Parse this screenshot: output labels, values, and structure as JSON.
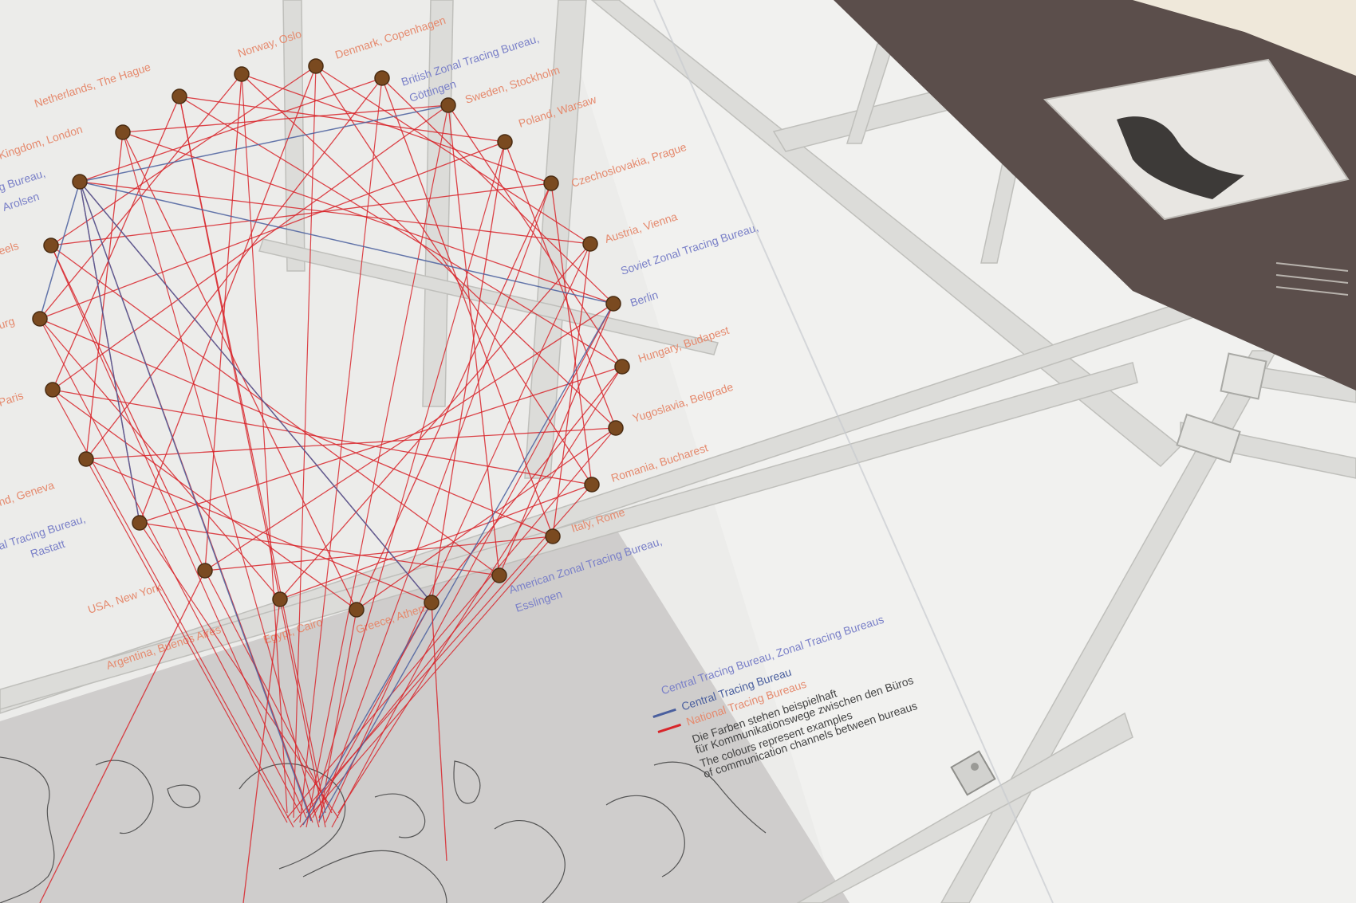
{
  "colors": {
    "background": "#ececea",
    "national_label": "#e58a6e",
    "zonal_label": "#7a80c8",
    "string_red": "#d8252a",
    "string_blue": "#4a5f9e",
    "pin": "#7a4a20",
    "map_panel": "#cfcdcc",
    "dark_panel": "#5b4e4b",
    "frame": "#d9d9d6"
  },
  "labels": {
    "national": [
      "Norway, Oslo",
      "Denmark, Copenhagen",
      "Netherlands, The Hague",
      "Sweden, Stockholm",
      "Kingdom, London",
      "Poland, Warsaw",
      "Czechoslovakia, Prague",
      "Austria, Vienna",
      "Hungary, Budapest",
      "Yugoslavia, Belgrade",
      "Romania, Bucharest",
      "Italy, Rome",
      "USA, New York",
      "Argentina, Buenos Aires",
      "Egypt, Cairo",
      "Greece, Athens",
      "eels",
      "urg",
      "Paris",
      "nd, Geneva"
    ],
    "zonal": [
      "British Zonal Tracing Bureau, Göttingen",
      "Soviet Zonal Tracing Bureau, Berlin",
      "American Zonal Tracing Bureau, Esslingen",
      "al Tracing Bureau, Rastatt",
      "g Bureau, Arolsen"
    ]
  },
  "legend": {
    "header": "Central Tracing Bureau, Zonal Tracing Bureaus",
    "blue_item": "Central Tracing Bureau",
    "red_item": "National Tracing Bureaus",
    "note_de_1": "Die Farben stehen beispielhaft",
    "note_de_2": "für Kommunikationswege zwischen den Büros",
    "note_en_1": "The colours represent examples",
    "note_en_2": "of communication channels between bureaus"
  }
}
